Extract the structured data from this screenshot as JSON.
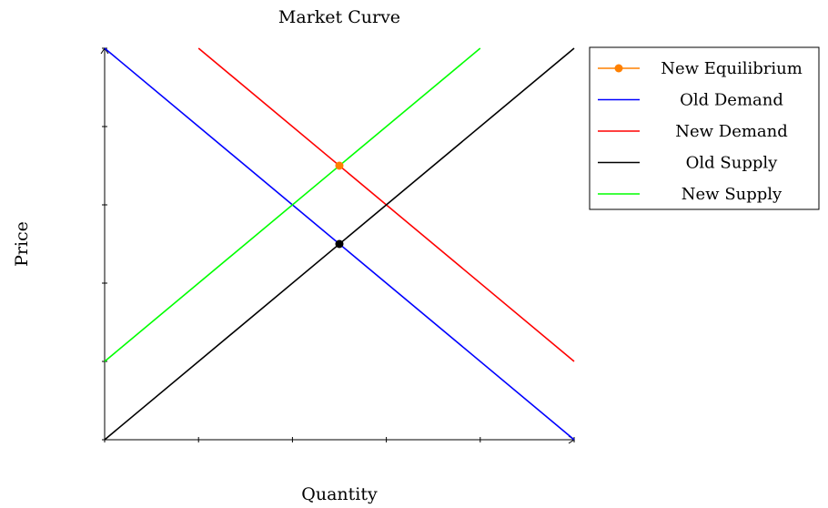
{
  "chart_data": {
    "type": "line",
    "title": "Market Curve",
    "xlabel": "Quantity",
    "ylabel": "Price",
    "xlim": [
      0,
      10
    ],
    "ylim": [
      0,
      10
    ],
    "tick_labels_shown": false,
    "grid": false,
    "legend_position": "top-right outside",
    "series": [
      {
        "name": "Old Demand",
        "color": "#0000ff",
        "points": [
          [
            0,
            10
          ],
          [
            10,
            0
          ]
        ]
      },
      {
        "name": "New Demand",
        "color": "#ff0000",
        "points": [
          [
            2,
            10
          ],
          [
            10,
            2
          ]
        ]
      },
      {
        "name": "Old Supply",
        "color": "#000000",
        "points": [
          [
            0,
            0
          ],
          [
            10,
            10
          ]
        ]
      },
      {
        "name": "New Supply",
        "color": "#00ff00",
        "points": [
          [
            0,
            2
          ],
          [
            8,
            10
          ]
        ]
      }
    ],
    "markers": [
      {
        "name": "Old Equilibrium",
        "color": "#000000",
        "x": 5,
        "y": 5
      },
      {
        "name": "New Equilibrium",
        "color": "#ff8000",
        "x": 5,
        "y": 7
      }
    ],
    "legend": [
      {
        "label": "New Equilibrium",
        "color": "#ff8000",
        "marker": true
      },
      {
        "label": "Old Demand",
        "color": "#0000ff"
      },
      {
        "label": "New Demand",
        "color": "#ff0000"
      },
      {
        "label": "Old Supply",
        "color": "#000000"
      },
      {
        "label": "New Supply",
        "color": "#00ff00"
      }
    ]
  }
}
